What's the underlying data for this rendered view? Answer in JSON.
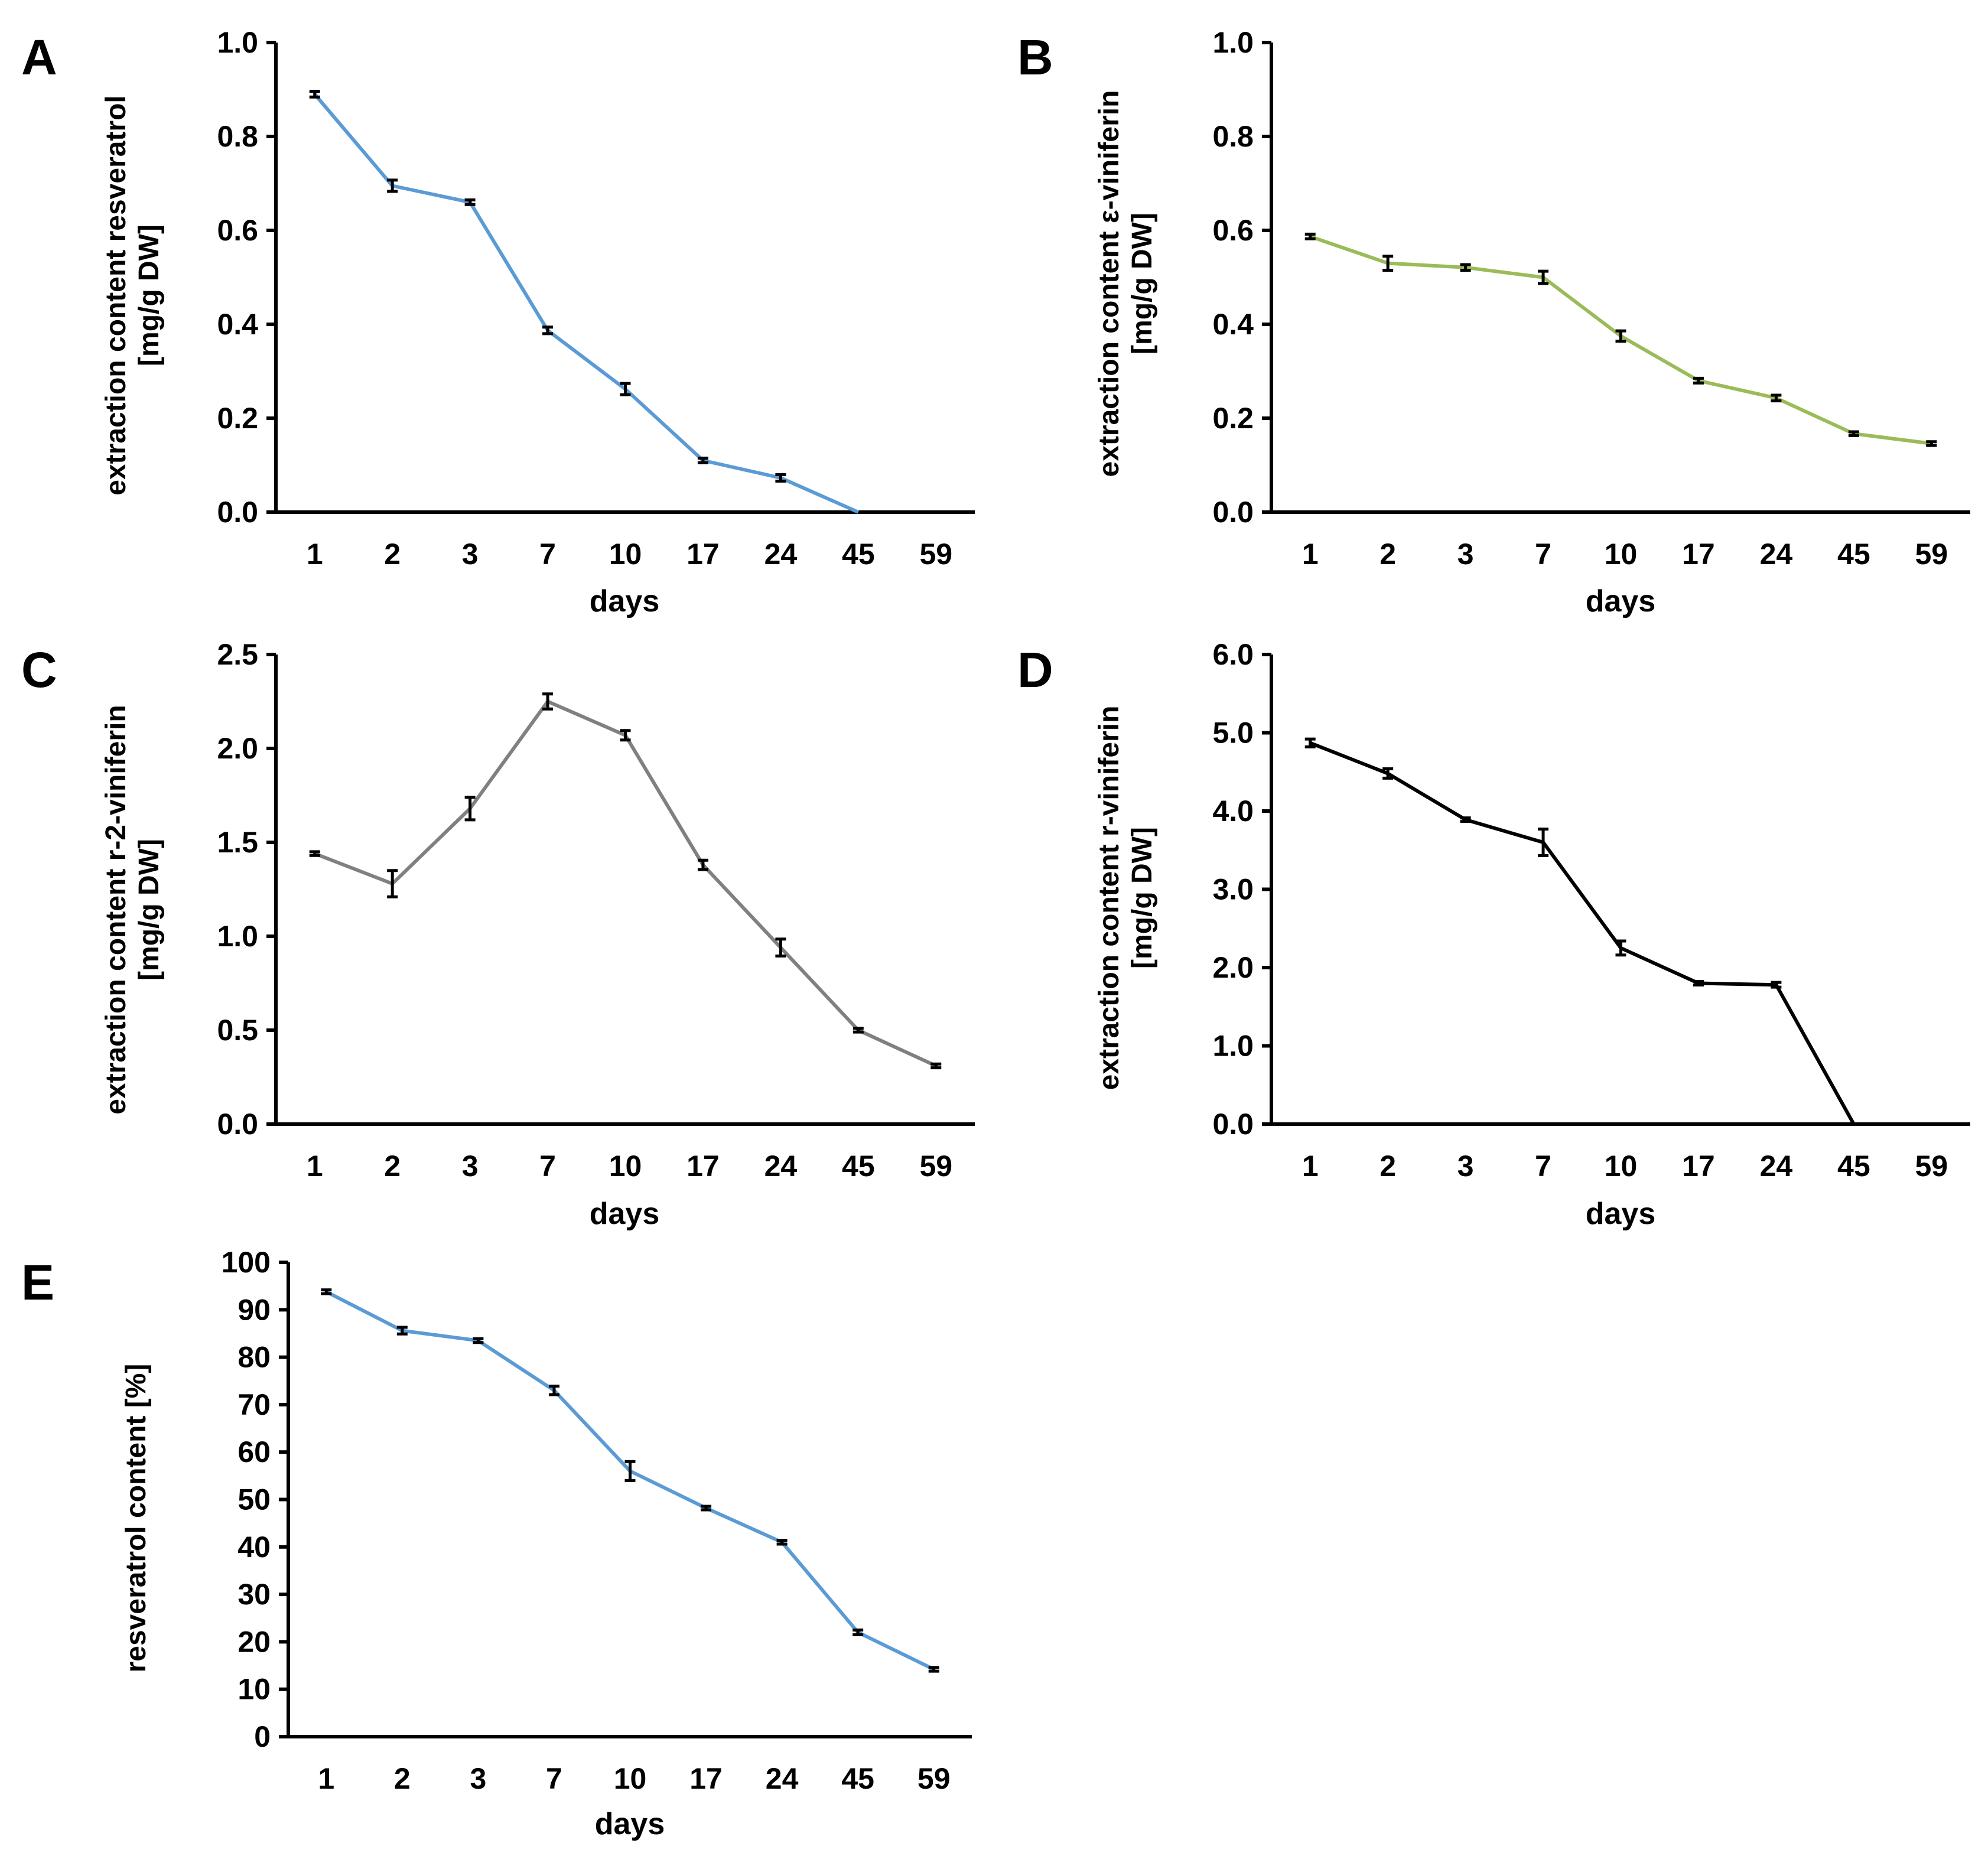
{
  "chart_data": [
    {
      "id": "A",
      "type": "line",
      "panel": "A",
      "xlabel": "days",
      "ylabel": [
        "extraction content resveratrol",
        "[mg/g DW]"
      ],
      "categories": [
        "1",
        "2",
        "3",
        "7",
        "10",
        "17",
        "24",
        "45",
        "59"
      ],
      "ylim": [
        0,
        1.0
      ],
      "yticks": [
        0,
        0.2,
        0.4,
        0.6,
        0.8,
        1.0
      ],
      "ytick_labels": [
        "0.0",
        "0.2",
        "0.4",
        "0.6",
        "0.8",
        "1.0"
      ],
      "color": "#5b9bd5",
      "series": [
        {
          "name": "resveratrol",
          "values": [
            0.89,
            0.695,
            0.66,
            0.387,
            0.262,
            0.11,
            0.073,
            0.0,
            null
          ],
          "errors": [
            0.006,
            0.012,
            0.005,
            0.007,
            0.012,
            0.005,
            0.007,
            0.0,
            null
          ]
        }
      ]
    },
    {
      "id": "B",
      "type": "line",
      "panel": "B",
      "xlabel": "days",
      "ylabel": [
        "extraction content ε-viniferin",
        "[mg/g DW]"
      ],
      "categories": [
        "1",
        "2",
        "3",
        "7",
        "10",
        "17",
        "24",
        "45",
        "59"
      ],
      "ylim": [
        0,
        1.0
      ],
      "yticks": [
        0,
        0.2,
        0.4,
        0.6,
        0.8,
        1.0
      ],
      "ytick_labels": [
        "0.0",
        "0.2",
        "0.4",
        "0.6",
        "0.8",
        "1.0"
      ],
      "color": "#9bbb59",
      "series": [
        {
          "name": "ε-viniferin",
          "values": [
            0.587,
            0.53,
            0.521,
            0.5,
            0.375,
            0.28,
            0.243,
            0.167,
            0.146
          ],
          "errors": [
            0.005,
            0.015,
            0.006,
            0.013,
            0.011,
            0.005,
            0.006,
            0.004,
            0.004
          ]
        }
      ]
    },
    {
      "id": "C",
      "type": "line",
      "panel": "C",
      "xlabel": "days",
      "ylabel": [
        "extraction content r-2-viniferin",
        "[mg/g DW]"
      ],
      "categories": [
        "1",
        "2",
        "3",
        "7",
        "10",
        "17",
        "24",
        "45",
        "59"
      ],
      "ylim": [
        0,
        2.5
      ],
      "yticks": [
        0,
        0.5,
        1.0,
        1.5,
        2.0,
        2.5
      ],
      "ytick_labels": [
        "0.0",
        "0.5",
        "1.0",
        "1.5",
        "2.0",
        "2.5"
      ],
      "color": "#808080",
      "series": [
        {
          "name": "r-2-viniferin",
          "values": [
            1.44,
            1.28,
            1.68,
            2.25,
            2.07,
            1.38,
            0.94,
            0.5,
            0.31
          ],
          "errors": [
            0.01,
            0.07,
            0.06,
            0.04,
            0.025,
            0.025,
            0.045,
            0.01,
            0.01
          ]
        }
      ]
    },
    {
      "id": "D",
      "type": "line",
      "panel": "D",
      "xlabel": "days",
      "ylabel": [
        "extraction content r-viniferin",
        "[mg/g DW]"
      ],
      "categories": [
        "1",
        "2",
        "3",
        "7",
        "10",
        "17",
        "24",
        "45",
        "59"
      ],
      "ylim": [
        0,
        6.0
      ],
      "yticks": [
        0,
        1,
        2,
        3,
        4,
        5,
        6
      ],
      "ytick_labels": [
        "0.0",
        "1.0",
        "2.0",
        "3.0",
        "4.0",
        "5.0",
        "6.0"
      ],
      "color": "#000000",
      "series": [
        {
          "name": "r-viniferin",
          "values": [
            4.87,
            4.48,
            3.89,
            3.6,
            2.25,
            1.8,
            1.78,
            0.0,
            null
          ],
          "errors": [
            0.05,
            0.06,
            0.02,
            0.17,
            0.09,
            0.02,
            0.03,
            0.0,
            null
          ]
        }
      ]
    },
    {
      "id": "E",
      "type": "line",
      "panel": "E",
      "xlabel": "days",
      "ylabel": [
        "resveratrol content [%]"
      ],
      "categories": [
        "1",
        "2",
        "3",
        "7",
        "10",
        "17",
        "24",
        "45",
        "59"
      ],
      "ylim": [
        0,
        100
      ],
      "yticks": [
        0,
        10,
        20,
        30,
        40,
        50,
        60,
        70,
        80,
        90,
        100
      ],
      "ytick_labels": [
        "0",
        "10",
        "20",
        "30",
        "40",
        "50",
        "60",
        "70",
        "80",
        "90",
        "100"
      ],
      "color": "#5b9bd5",
      "series": [
        {
          "name": "resveratrol content",
          "values": [
            93.8,
            85.6,
            83.5,
            73.0,
            56.0,
            48.2,
            41.0,
            22.0,
            14.2
          ],
          "errors": [
            0.4,
            0.7,
            0.4,
            0.9,
            2.0,
            0.3,
            0.4,
            0.5,
            0.4
          ]
        }
      ]
    }
  ]
}
